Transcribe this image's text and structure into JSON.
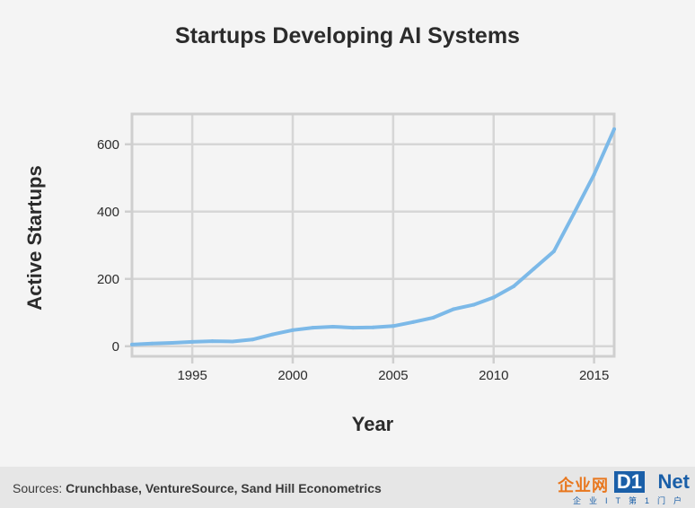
{
  "chart_data": {
    "type": "line",
    "title": "Startups Developing AI Systems",
    "xlabel": "Year",
    "ylabel": "Active Startups",
    "xlim": [
      1992,
      2016
    ],
    "ylim": [
      -30,
      690
    ],
    "x_ticks": [
      1995,
      2000,
      2005,
      2010,
      2015
    ],
    "y_ticks": [
      0,
      200,
      400,
      600
    ],
    "grid": true,
    "color": "#7cb9e8",
    "series": [
      {
        "x": [
          1992,
          1993,
          1994,
          1995,
          1996,
          1997,
          1998,
          1999,
          2000,
          2001,
          2002,
          2003,
          2004,
          2005,
          2006,
          2007,
          2008,
          2009,
          2010,
          2011,
          2012,
          2013,
          2014,
          2015,
          2016
        ],
        "values": [
          5,
          8,
          10,
          13,
          15,
          14,
          20,
          35,
          48,
          55,
          58,
          55,
          56,
          60,
          72,
          85,
          110,
          123,
          145,
          178,
          230,
          282,
          395,
          510,
          645
        ]
      }
    ]
  },
  "footer": {
    "source_prefix": "Sources: ",
    "source_names": "Crunchbase, VentureSource, Sand Hill Econometrics"
  },
  "watermark": {
    "cn": "企业网",
    "d1": "D1",
    "net": "Net",
    "sub": "企业IT第1门户"
  }
}
